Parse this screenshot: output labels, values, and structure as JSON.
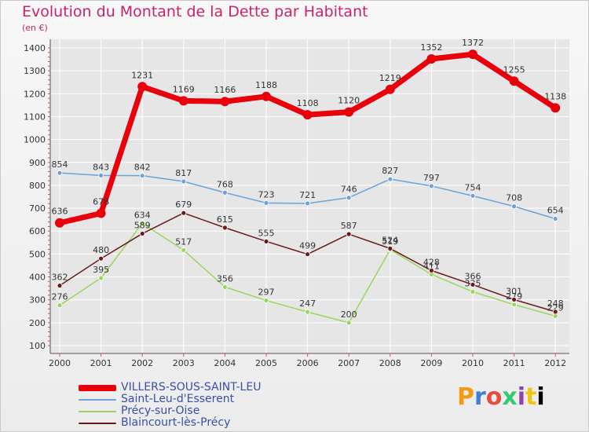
{
  "header": {
    "title": "Evolution du Montant de la Dette par Habitant",
    "subtitle": "(en €)"
  },
  "logo": {
    "letters": [
      "P",
      "r",
      "o",
      "x",
      "i",
      "t",
      "i"
    ]
  },
  "colors": {
    "title": "#c8236b",
    "legend_text": "#3a4fa8",
    "axis": "#444444",
    "grid": "#ffffff"
  },
  "chart_data": {
    "type": "line",
    "title": "Evolution du Montant de la Dette par Habitant",
    "ylabel": "(en €)",
    "xlabel": "",
    "ylim": [
      100,
      1400
    ],
    "yticks": [
      100,
      200,
      300,
      400,
      500,
      600,
      700,
      800,
      900,
      1000,
      1100,
      1200,
      1300,
      1400
    ],
    "categories": [
      "2000",
      "2001",
      "2002",
      "2003",
      "2004",
      "2005",
      "2006",
      "2007",
      "2008",
      "2009",
      "2010",
      "2011",
      "2012"
    ],
    "grid": true,
    "legend_position": "bottom-left",
    "series": [
      {
        "name": "VILLERS-SOUS-SAINT-LEU",
        "color": "#e8000b",
        "emphasis": true,
        "values": [
          636,
          678,
          1231,
          1169,
          1166,
          1188,
          1108,
          1120,
          1219,
          1352,
          1372,
          1255,
          1138
        ],
        "labels": [
          "636",
          "678",
          "1231",
          "1169",
          "1166",
          "1188",
          "1108",
          "1120",
          "1219",
          "1352",
          "1372",
          "1255",
          "1138"
        ]
      },
      {
        "name": "Saint-Leu-d'Esserent",
        "color": "#6ba3d6",
        "emphasis": false,
        "values": [
          854,
          843,
          842,
          817,
          768,
          723,
          721,
          746,
          827,
          797,
          754,
          708,
          654
        ],
        "labels": [
          "854",
          "843",
          "842",
          "817",
          "768",
          "723",
          "721",
          "746",
          "827",
          "797",
          "754",
          "708",
          "654"
        ]
      },
      {
        "name": "Précy-sur-Oise",
        "color": "#99d65c",
        "emphasis": false,
        "values": [
          276,
          395,
          634,
          517,
          356,
          297,
          247,
          200,
          519,
          411,
          335,
          279,
          229
        ],
        "labels": [
          "276",
          "395",
          "634",
          "517",
          "356",
          "297",
          "247",
          "200",
          "519",
          "411",
          "335",
          "279",
          "229"
        ]
      },
      {
        "name": "Blaincourt-lès-Précy",
        "color": "#6b1a1a",
        "emphasis": false,
        "values": [
          362,
          480,
          589,
          679,
          615,
          555,
          499,
          587,
          524,
          428,
          366,
          301,
          248
        ],
        "labels": [
          "362",
          "480",
          "589",
          "679",
          "615",
          "555",
          "499",
          "587",
          "524",
          "428",
          "366",
          "301",
          "248"
        ]
      }
    ]
  }
}
